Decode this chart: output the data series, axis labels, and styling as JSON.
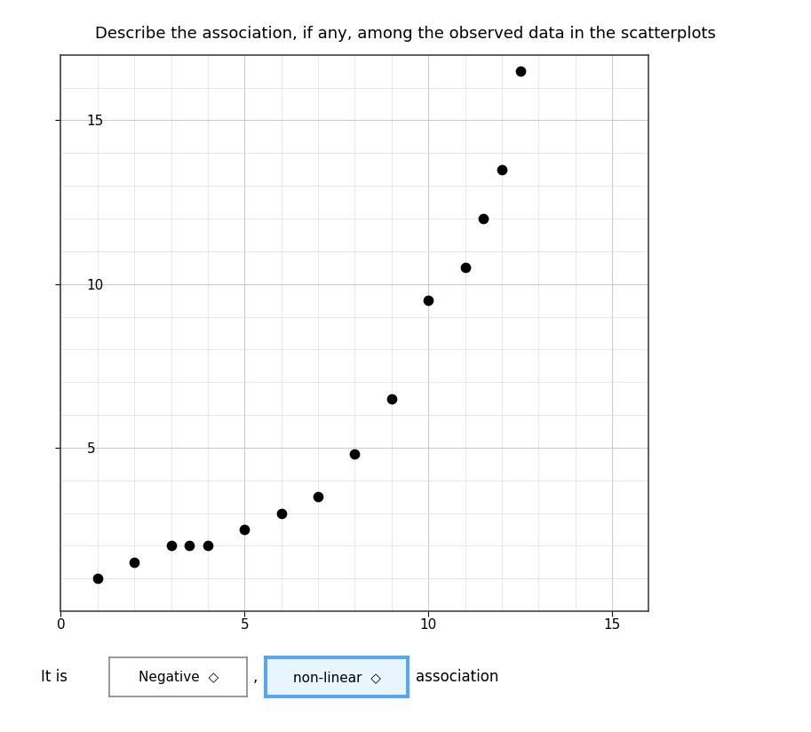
{
  "title": "Describe the association, if any, among the observed data in the scatterplots",
  "title_fontsize": 13,
  "x_points": [
    1,
    2,
    3,
    3.5,
    4,
    5,
    6,
    7,
    8,
    9,
    10,
    11,
    11.5,
    12,
    12.5
  ],
  "y_points": [
    1,
    1.5,
    2,
    2,
    2,
    2.5,
    3,
    3.5,
    4.8,
    6.5,
    9.5,
    10.5,
    12,
    13.5,
    16.5
  ],
  "xlim": [
    0,
    16
  ],
  "ylim": [
    0,
    17
  ],
  "xticks": [
    0,
    5,
    10,
    15
  ],
  "yticks": [
    5,
    10,
    15
  ],
  "dot_color": "#000000",
  "dot_size": 55,
  "grid_major_color": "#cccccc",
  "grid_minor_color": "#dddddd",
  "bg_color": "#ffffff",
  "box1_border_color": "#888888",
  "box2_border_color": "#4da6ff",
  "box2_bg_color": "#e8f4ff"
}
